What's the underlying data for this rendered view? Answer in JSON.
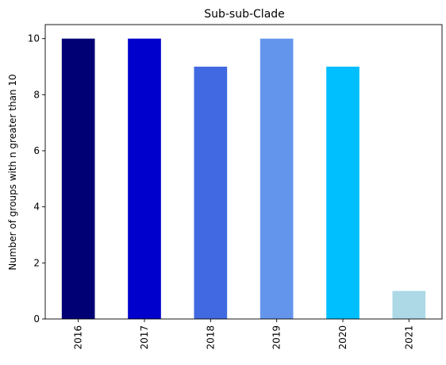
{
  "chart_data": {
    "type": "bar",
    "title": "Sub-sub-Clade",
    "xlabel": "",
    "ylabel": "Number of groups with n greater than 10",
    "categories": [
      "2016",
      "2017",
      "2018",
      "2019",
      "2020",
      "2021"
    ],
    "values": [
      10,
      10,
      9,
      10,
      9,
      1
    ],
    "colors": [
      "#000075",
      "#0000cd",
      "#4169e1",
      "#6495ed",
      "#00bfff",
      "#add8e6"
    ],
    "ylim": [
      0,
      10.5
    ],
    "yticks": [
      0,
      2,
      4,
      6,
      8,
      10
    ],
    "grid": false,
    "legend": "none"
  }
}
